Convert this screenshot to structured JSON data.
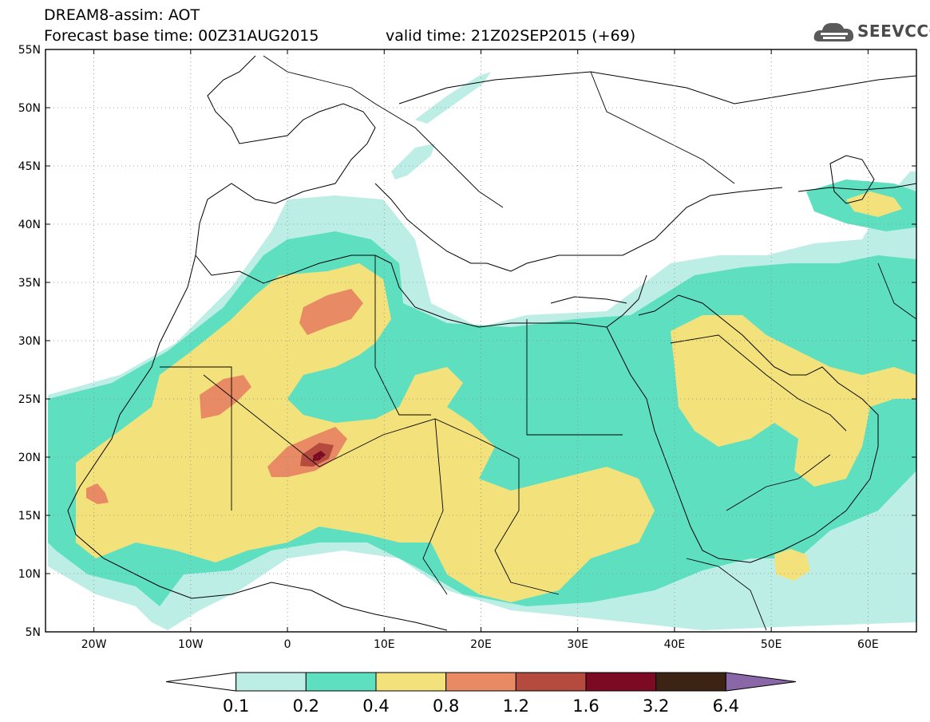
{
  "title": {
    "line1": "DREAM8-assim: AOT",
    "line2": "Forecast base time: 00Z31AUG2015",
    "valid": "valid time: 21Z02SEP2015 (+69)"
  },
  "logo": {
    "text": "SEEVCCC",
    "icon": "cloud-icon"
  },
  "axes": {
    "lat_labels": [
      "55N",
      "50N",
      "45N",
      "40N",
      "35N",
      "30N",
      "25N",
      "20N",
      "15N",
      "10N",
      "5N"
    ],
    "lat_values": [
      55,
      50,
      45,
      40,
      35,
      30,
      25,
      20,
      15,
      10,
      5
    ],
    "lon_labels": [
      "20W",
      "10W",
      "0",
      "10E",
      "20E",
      "30E",
      "40E",
      "50E",
      "60E"
    ],
    "lon_values": [
      -20,
      -10,
      0,
      10,
      20,
      30,
      40,
      50,
      60
    ],
    "lon_range": [
      -25,
      65
    ],
    "lat_range": [
      5,
      55
    ]
  },
  "colorbar": {
    "labels": [
      "0.1",
      "0.2",
      "0.4",
      "0.8",
      "1.2",
      "1.6",
      "3.2",
      "6.4"
    ],
    "colors": [
      "#ffffff",
      "#bdeee6",
      "#5ee0c0",
      "#f3e27b",
      "#e88a64",
      "#b54a3e",
      "#7c0a22",
      "#3c2414",
      "#8a68a8"
    ]
  },
  "colors": {
    "c1": "#bdeee6",
    "c2": "#5ee0c0",
    "c3": "#f3e27b",
    "c4": "#e88a64",
    "c5": "#b54a3e",
    "c6": "#7c0a22"
  }
}
